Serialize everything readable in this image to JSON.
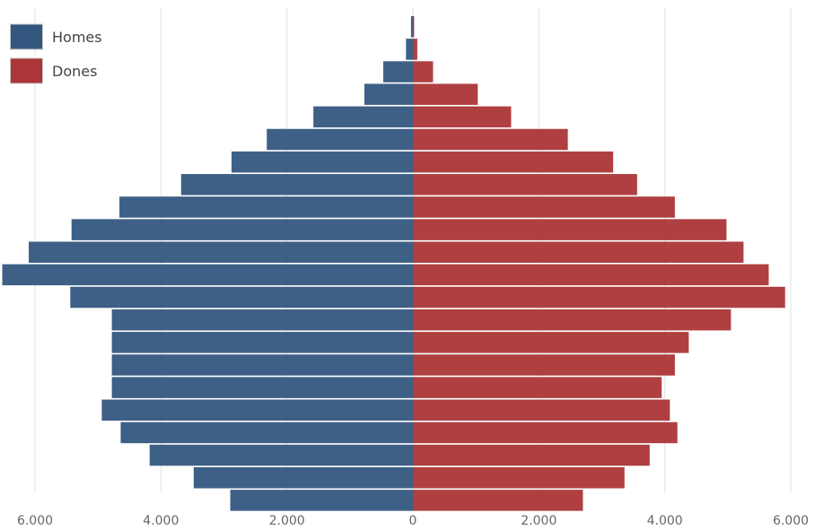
{
  "chart_data": {
    "type": "bar",
    "orientation": "horizontal",
    "layout": "population-pyramid",
    "title": "",
    "xlabel": "",
    "ylabel": "",
    "xlim": [
      -6000,
      6000
    ],
    "x_ticks": [
      -6000,
      -4000,
      -2000,
      0,
      2000,
      4000,
      6000
    ],
    "x_tick_labels": [
      "6.000",
      "4.000",
      "2.000",
      "0",
      "2.000",
      "4.000",
      "6.000"
    ],
    "grid": true,
    "legend_position": "top-left",
    "series": [
      {
        "name": "Homes",
        "color": "#34577f",
        "side": "left",
        "values": [
          2900,
          3480,
          4180,
          4640,
          4940,
          4780,
          4780,
          4780,
          4780,
          5440,
          6520,
          6100,
          5420,
          4660,
          3680,
          2880,
          2320,
          1580,
          770,
          470,
          110,
          30
        ]
      },
      {
        "name": "Dones",
        "color": "#ab3537",
        "side": "right",
        "values": [
          2700,
          3360,
          3760,
          4200,
          4080,
          3950,
          4160,
          4380,
          5050,
          5910,
          5650,
          5250,
          4980,
          4160,
          3560,
          3180,
          2460,
          1560,
          1030,
          320,
          70,
          20
        ]
      }
    ]
  }
}
